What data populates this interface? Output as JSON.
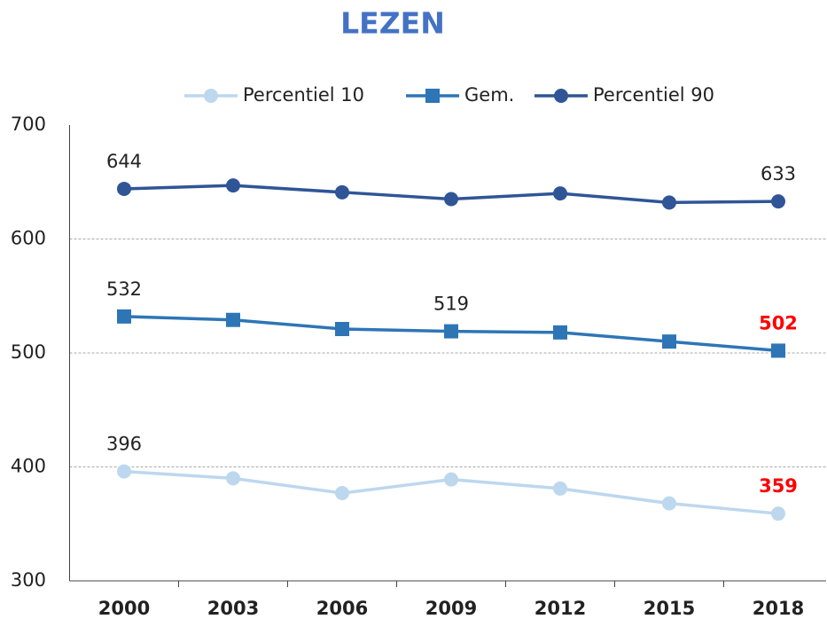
{
  "chart_data": {
    "type": "line",
    "title": "LEZEN",
    "categories": [
      "2000",
      "2003",
      "2006",
      "2009",
      "2012",
      "2015",
      "2018"
    ],
    "series": [
      {
        "name": "Percentiel 10",
        "color": "#bdd7ee",
        "marker": "circle",
        "values": [
          396,
          390,
          377,
          389,
          381,
          368,
          359
        ],
        "labeled_points": [
          0,
          6
        ],
        "highlight_points": [
          6
        ]
      },
      {
        "name": "Gem.",
        "color": "#2e75b6",
        "marker": "square",
        "values": [
          532,
          529,
          521,
          519,
          518,
          510,
          502
        ],
        "labeled_points": [
          0,
          3,
          6
        ],
        "highlight_points": [
          6
        ]
      },
      {
        "name": "Percentiel 90",
        "color": "#2f5597",
        "marker": "circle",
        "values": [
          644,
          647,
          641,
          635,
          640,
          632,
          633
        ],
        "labeled_points": [
          0,
          6
        ],
        "highlight_points": []
      }
    ],
    "highlight_color": "#ff0000",
    "ylim": [
      300,
      700
    ],
    "yticks": [
      300,
      400,
      500,
      600,
      700
    ],
    "grid": true,
    "legend": "top"
  }
}
